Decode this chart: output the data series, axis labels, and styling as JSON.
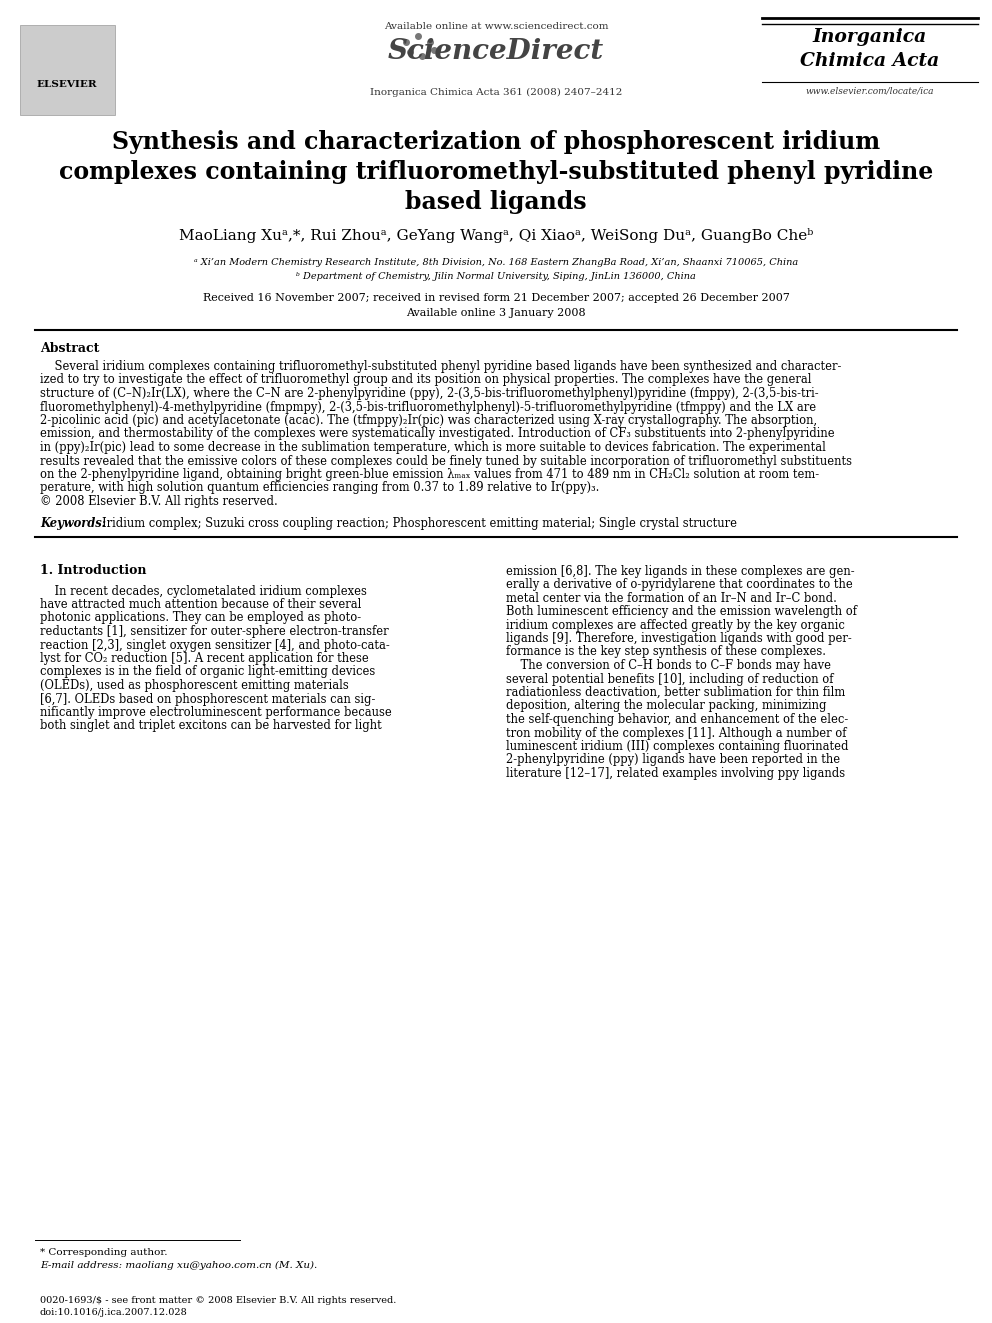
{
  "bg_color": "#ffffff",
  "available_online": "Available online at www.sciencedirect.com",
  "sciencedirect": "ScienceDirect",
  "journal_ref": "Inorganica Chimica Acta 361 (2008) 2407–2412",
  "journal_name_line1": "Inorganica",
  "journal_name_line2": "Chimica Acta",
  "journal_website": "www.elsevier.com/locate/ica",
  "elsevier_text": "ELSEVIER",
  "title_line1": "Synthesis and characterization of phosphorescent iridium",
  "title_line2": "complexes containing trifluoromethyl-substituted phenyl pyridine",
  "title_line3": "based ligands",
  "authors": "MaoLiang Xuᵃ,*, Rui Zhouᵃ, GeYang Wangᵃ, Qi Xiaoᵃ, WeiSong Duᵃ, GuangBo Cheᵇ",
  "affiliation_a": "ᵃ Xi’an Modern Chemistry Research Institute, 8th Division, No. 168 Eastern ZhangBa Road, Xi’an, Shaanxi 710065, China",
  "affiliation_b": "ᵇ Department of Chemistry, Jilin Normal University, Siping, JinLin 136000, China",
  "received": "Received 16 November 2007; received in revised form 21 December 2007; accepted 26 December 2007",
  "available": "Available online 3 January 2008",
  "abstract_title": "Abstract",
  "abstract_lines": [
    "    Several iridium complexes containing trifluoromethyl-substituted phenyl pyridine based ligands have been synthesized and character-",
    "ized to try to investigate the effect of trifluoromethyl group and its position on physical properties. The complexes have the general",
    "structure of (C–N)₂Ir(LX), where the C–N are 2-phenylpyridine (ppy), 2-(3,5-bis-trifluoromethylphenyl)pyridine (fmppy), 2-(3,5-bis-tri-",
    "fluoromethylphenyl)-4-methylpyridine (fmpmpy), 2-(3,5-bis-trifluoromethylphenyl)-5-trifluoromethylpyridine (tfmppy) and the LX are",
    "2-picolinic acid (pic) and acetylacetonate (acac). The (tfmppy)₂Ir(pic) was characterized using X-ray crystallography. The absorption,",
    "emission, and thermostability of the complexes were systematically investigated. Introduction of CF₃ substituents into 2-phenylpyridine",
    "in (ppy)₂Ir(pic) lead to some decrease in the sublimation temperature, which is more suitable to devices fabrication. The experimental",
    "results revealed that the emissive colors of these complexes could be finely tuned by suitable incorporation of trifluoromethyl substituents",
    "on the 2-phenylpyridine ligand, obtaining bright green-blue emission λₘₐₓ values from 471 to 489 nm in CH₂Cl₂ solution at room tem-",
    "perature, with high solution quantum efficiencies ranging from 0.37 to 1.89 relative to Ir(ppy)₃.",
    "© 2008 Elsevier B.V. All rights reserved."
  ],
  "keywords_label": "Keywords:  ",
  "keywords_text": "Iridium complex; Suzuki cross coupling reaction; Phosphorescent emitting material; Single crystal structure",
  "section1_title": "1. Introduction",
  "intro_left_lines": [
    "    In recent decades, cyclometalated iridium complexes",
    "have attracted much attention because of their several",
    "photonic applications. They can be employed as photo-",
    "reductants [1], sensitizer for outer-sphere electron-transfer",
    "reaction [2,3], singlet oxygen sensitizer [4], and photo-cata-",
    "lyst for CO₂ reduction [5]. A recent application for these",
    "complexes is in the field of organic light-emitting devices",
    "(OLEDs), used as phosphorescent emitting materials",
    "[6,7]. OLEDs based on phosphorescent materials can sig-",
    "nificantly improve electroluminescent performance because",
    "both singlet and triplet excitons can be harvested for light"
  ],
  "intro_right_lines": [
    "emission [6,8]. The key ligands in these complexes are gen-",
    "erally a derivative of o-pyridylarene that coordinates to the",
    "metal center via the formation of an Ir–N and Ir–C bond.",
    "Both luminescent efficiency and the emission wavelength of",
    "iridium complexes are affected greatly by the key organic",
    "ligands [9]. Therefore, investigation ligands with good per-",
    "formance is the key step synthesis of these complexes.",
    "    The conversion of C–H bonds to C–F bonds may have",
    "several potential benefits [10], including of reduction of",
    "radiationless deactivation, better sublimation for thin film",
    "deposition, altering the molecular packing, minimizing",
    "the self-quenching behavior, and enhancement of the elec-",
    "tron mobility of the complexes [11]. Although a number of",
    "luminescent iridium (III) complexes containing fluorinated",
    "2-phenylpyridine (ppy) ligands have been reported in the",
    "literature [12–17], related examples involving ppy ligands"
  ],
  "footnote_star": "* Corresponding author.",
  "footnote_email": "E-mail address: maoliang xu@yahoo.com.cn (M. Xu).",
  "footer_line1": "0020-1693/$ - see front matter © 2008 Elsevier B.V. All rights reserved.",
  "footer_line2": "doi:10.1016/j.ica.2007.12.028"
}
